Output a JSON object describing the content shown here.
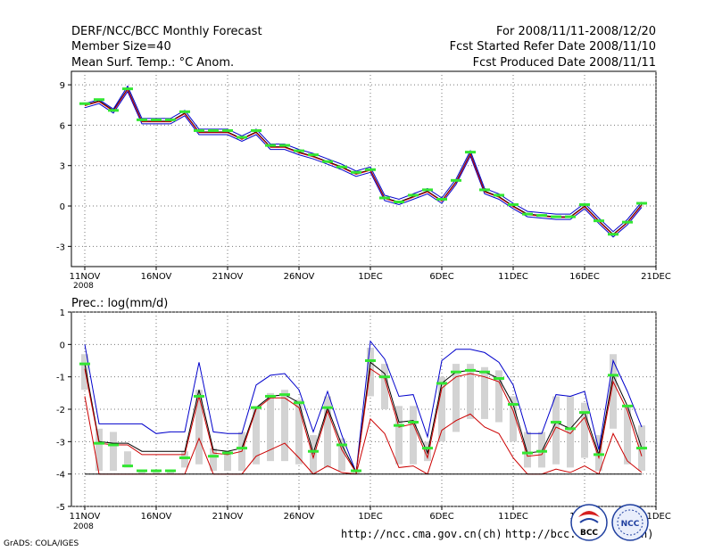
{
  "header": {
    "left_line1": "DERF/NCC/BCC Monthly Forecast",
    "left_line2": "Member Size=40",
    "left_line3": "Mean Surf. Temp.: °C Anom.",
    "right_line1": "For 2008/11/11-2008/12/20",
    "right_line2": "Fcst Started Refer Date 2008/11/10",
    "right_line3": "Fcst Produced Date 2008/11/11"
  },
  "footer": {
    "grads": "GrADS: COLA/IGES",
    "url1": "http://ncc.cma.gov.cn(ch)",
    "url2": "http://bcc.c",
    "url2_tail": "n)",
    "logo_bcc": "BCC",
    "logo_ncc": "NCC"
  },
  "chart_data": [
    {
      "type": "line",
      "title": "Mean Surf. Temp.: °C Anom.",
      "x_tick_labels": [
        "11NOV",
        "16NOV",
        "21NOV",
        "26NOV",
        "1DEC",
        "6DEC",
        "11DEC",
        "16DEC",
        "21DEC"
      ],
      "x_tick_days": [
        0,
        5,
        10,
        15,
        20,
        25,
        30,
        35,
        40
      ],
      "x_sublabel": "2008",
      "ylim": [
        -4.5,
        10
      ],
      "yticks": [
        -3,
        0,
        3,
        6,
        9
      ],
      "ytick_labels": [
        "-3",
        "0",
        "3",
        "6",
        "9"
      ],
      "days": [
        0,
        1,
        2,
        3,
        4,
        5,
        6,
        7,
        8,
        9,
        10,
        11,
        12,
        13,
        14,
        15,
        16,
        17,
        18,
        19,
        20,
        21,
        22,
        23,
        24,
        25,
        26,
        27,
        28,
        29,
        30,
        31,
        32,
        33,
        34,
        35,
        36,
        37,
        38,
        39
      ],
      "series": [
        {
          "name": "mean",
          "color": "#000000",
          "values": [
            7.5,
            7.8,
            7.1,
            8.7,
            6.3,
            6.3,
            6.3,
            6.9,
            5.5,
            5.5,
            5.5,
            5.0,
            5.5,
            4.4,
            4.4,
            4.0,
            3.7,
            3.3,
            2.9,
            2.4,
            2.7,
            0.6,
            0.3,
            0.7,
            1.1,
            0.4,
            1.8,
            3.9,
            1.1,
            0.7,
            0.0,
            -0.6,
            -0.7,
            -0.8,
            -0.8,
            0.0,
            -1.1,
            -2.1,
            -1.2,
            0.1
          ]
        },
        {
          "name": "upper",
          "color": "#0000cc",
          "values": [
            7.6,
            7.9,
            7.2,
            8.9,
            6.5,
            6.5,
            6.5,
            7.1,
            5.7,
            5.7,
            5.7,
            5.2,
            5.7,
            4.6,
            4.6,
            4.2,
            3.9,
            3.5,
            3.1,
            2.6,
            2.9,
            0.8,
            0.5,
            0.9,
            1.3,
            0.6,
            2.0,
            4.1,
            1.3,
            0.9,
            0.2,
            -0.4,
            -0.5,
            -0.6,
            -0.6,
            0.2,
            -0.9,
            -1.9,
            -1.0,
            0.3
          ]
        },
        {
          "name": "lower",
          "color": "#0000cc",
          "values": [
            7.3,
            7.6,
            6.9,
            8.5,
            6.1,
            6.1,
            6.1,
            6.7,
            5.3,
            5.3,
            5.3,
            4.8,
            5.3,
            4.2,
            4.2,
            3.8,
            3.5,
            3.1,
            2.7,
            2.2,
            2.5,
            0.4,
            0.1,
            0.5,
            0.9,
            0.2,
            1.6,
            3.7,
            0.9,
            0.5,
            -0.2,
            -0.8,
            -0.9,
            -1.0,
            -1.0,
            -0.2,
            -1.3,
            -2.3,
            -1.4,
            -0.1
          ]
        },
        {
          "name": "median",
          "color": "#cc0000",
          "values": [
            7.45,
            7.75,
            7.05,
            8.65,
            6.25,
            6.25,
            6.25,
            6.85,
            5.45,
            5.45,
            5.45,
            4.95,
            5.45,
            4.35,
            4.35,
            3.95,
            3.65,
            3.25,
            2.85,
            2.35,
            2.65,
            0.55,
            0.25,
            0.65,
            1.05,
            0.35,
            1.75,
            3.85,
            1.05,
            0.65,
            -0.05,
            -0.65,
            -0.75,
            -0.85,
            -0.85,
            -0.05,
            -1.15,
            -2.15,
            -1.25,
            0.05
          ]
        }
      ],
      "markers": {
        "name": "observed",
        "color": "#33e633",
        "values": [
          7.6,
          7.9,
          7.1,
          8.7,
          6.4,
          6.4,
          6.4,
          7.0,
          5.6,
          5.6,
          5.6,
          5.1,
          5.6,
          4.5,
          4.5,
          4.1,
          3.8,
          3.3,
          2.9,
          2.5,
          2.7,
          0.6,
          0.3,
          0.8,
          1.2,
          0.5,
          1.9,
          4.0,
          1.2,
          0.8,
          0.1,
          -0.6,
          -0.7,
          -0.8,
          -0.8,
          0.1,
          -1.1,
          -2.1,
          -1.2,
          0.2
        ]
      }
    },
    {
      "type": "line",
      "title": "Prec.: log(mm/d)",
      "x_tick_labels": [
        "11NOV",
        "16NOV",
        "21NOV",
        "26NOV",
        "1DEC",
        "6DEC",
        "11DEC",
        "16DEC",
        "21DEC"
      ],
      "x_tick_days": [
        0,
        5,
        10,
        15,
        20,
        25,
        30,
        35,
        40
      ],
      "x_sublabel": "2008",
      "ylim": [
        -5,
        1
      ],
      "yticks": [
        -5,
        -4,
        -3,
        -2,
        -1,
        0,
        1
      ],
      "ytick_labels": [
        "-5",
        "-4",
        "-3",
        "-2",
        "-1",
        "0",
        "1"
      ],
      "days": [
        0,
        1,
        2,
        3,
        4,
        5,
        6,
        7,
        8,
        9,
        10,
        11,
        12,
        13,
        14,
        15,
        16,
        17,
        18,
        19,
        20,
        21,
        22,
        23,
        24,
        25,
        26,
        27,
        28,
        29,
        30,
        31,
        32,
        33,
        34,
        35,
        36,
        37,
        38,
        39
      ],
      "bars": {
        "name": "member spread",
        "color": "#d3d3d3",
        "low": [
          -1.4,
          -3.9,
          -3.9,
          -3.8,
          -4.0,
          -4.0,
          -4.0,
          -3.8,
          -3.7,
          -3.9,
          -3.9,
          -3.9,
          -3.7,
          -3.6,
          -3.6,
          -3.7,
          -4.0,
          -3.8,
          -3.9,
          -4.0,
          -1.6,
          -2.0,
          -3.7,
          -3.7,
          -3.6,
          -3.0,
          -2.7,
          -2.3,
          -2.3,
          -2.4,
          -3.0,
          -3.8,
          -3.8,
          -3.7,
          -3.8,
          -3.5,
          -3.9,
          -2.6,
          -3.7,
          -3.9
        ],
        "high": [
          -0.3,
          -2.6,
          -2.7,
          -3.3,
          -3.9,
          -3.9,
          -3.9,
          -3.3,
          -1.4,
          -3.2,
          -3.3,
          -2.7,
          -1.9,
          -1.5,
          -1.4,
          -1.7,
          -2.8,
          -1.6,
          -2.9,
          -3.9,
          -0.1,
          -0.6,
          -1.9,
          -1.9,
          -3.0,
          -1.0,
          -0.6,
          -0.6,
          -0.7,
          -0.8,
          -1.6,
          -2.7,
          -2.7,
          -1.6,
          -1.6,
          -1.8,
          -2.8,
          -0.3,
          -1.9,
          -2.5
        ]
      },
      "series": [
        {
          "name": "max",
          "color": "#0000cc",
          "values": [
            0.0,
            -2.45,
            -2.45,
            -2.45,
            -2.45,
            -2.75,
            -2.7,
            -2.7,
            -0.55,
            -2.7,
            -2.75,
            -2.75,
            -1.25,
            -0.95,
            -0.9,
            -1.4,
            -2.7,
            -1.45,
            -2.8,
            -3.95,
            0.1,
            -0.45,
            -1.6,
            -1.55,
            -2.85,
            -0.5,
            -0.15,
            -0.15,
            -0.25,
            -0.55,
            -1.25,
            -2.75,
            -2.75,
            -1.55,
            -1.6,
            -1.45,
            -3.25,
            -0.5,
            -1.45,
            -2.55
          ]
        },
        {
          "name": "mean",
          "color": "#000000",
          "values": [
            -0.6,
            -3.0,
            -3.05,
            -3.05,
            -3.3,
            -3.3,
            -3.3,
            -3.3,
            -1.4,
            -3.25,
            -3.3,
            -3.2,
            -1.95,
            -1.6,
            -1.55,
            -1.8,
            -3.35,
            -1.95,
            -3.1,
            -3.95,
            -0.55,
            -0.9,
            -2.4,
            -2.35,
            -3.35,
            -1.2,
            -0.85,
            -0.8,
            -0.85,
            -1.05,
            -1.85,
            -3.35,
            -3.3,
            -2.4,
            -2.6,
            -2.1,
            -3.4,
            -0.95,
            -1.9,
            -3.2
          ]
        },
        {
          "name": "median",
          "color": "#cc0000",
          "values": [
            -0.75,
            -3.05,
            -3.1,
            -3.1,
            -3.4,
            -3.4,
            -3.4,
            -3.4,
            -1.6,
            -3.35,
            -3.4,
            -3.3,
            -2.0,
            -1.65,
            -1.65,
            -1.95,
            -3.5,
            -2.05,
            -3.25,
            -3.95,
            -0.75,
            -1.05,
            -2.55,
            -2.45,
            -3.5,
            -1.35,
            -1.0,
            -0.9,
            -1.0,
            -1.15,
            -2.05,
            -3.45,
            -3.4,
            -2.55,
            -2.75,
            -2.25,
            -3.5,
            -1.15,
            -2.05,
            -3.45
          ]
        },
        {
          "name": "min",
          "color": "#cc0000",
          "values": [
            -1.6,
            -4.0,
            -4.0,
            -4.0,
            -4.0,
            -4.0,
            -4.0,
            -4.0,
            -2.9,
            -4.0,
            -4.0,
            -4.0,
            -3.45,
            -3.25,
            -3.05,
            -3.5,
            -4.0,
            -3.75,
            -3.95,
            -4.0,
            -2.3,
            -2.75,
            -3.8,
            -3.75,
            -4.0,
            -2.65,
            -2.35,
            -2.15,
            -2.55,
            -2.75,
            -3.5,
            -4.0,
            -4.0,
            -3.85,
            -3.95,
            -3.75,
            -4.0,
            -2.75,
            -3.6,
            -3.95
          ]
        },
        {
          "name": "floor",
          "color": "#000000",
          "values": [
            -4,
            -4,
            -4,
            -4,
            -4,
            -4,
            -4,
            -4,
            -4,
            -4,
            -4,
            -4,
            -4,
            -4,
            -4,
            -4,
            -4,
            -4,
            -4,
            -4,
            -4,
            -4,
            -4,
            -4,
            -4,
            -4,
            -4,
            -4,
            -4,
            -4,
            -4,
            -4,
            -4,
            -4,
            -4,
            -4,
            -4,
            -4,
            -4,
            -4
          ]
        }
      ],
      "markers": {
        "name": "observed",
        "color": "#33e633",
        "values": [
          -0.6,
          -3.05,
          -3.1,
          -3.75,
          -3.9,
          -3.9,
          -3.9,
          -3.5,
          -1.6,
          -3.45,
          -3.35,
          -3.2,
          -1.95,
          -1.6,
          -1.55,
          -1.8,
          -3.3,
          -1.95,
          -3.1,
          -3.9,
          -0.5,
          -1.0,
          -2.5,
          -2.4,
          -3.2,
          -1.2,
          -0.85,
          -0.8,
          -0.85,
          -1.05,
          -1.85,
          -3.35,
          -3.3,
          -2.4,
          -2.6,
          -2.1,
          -3.4,
          -0.95,
          -1.9,
          -3.2
        ]
      }
    }
  ]
}
